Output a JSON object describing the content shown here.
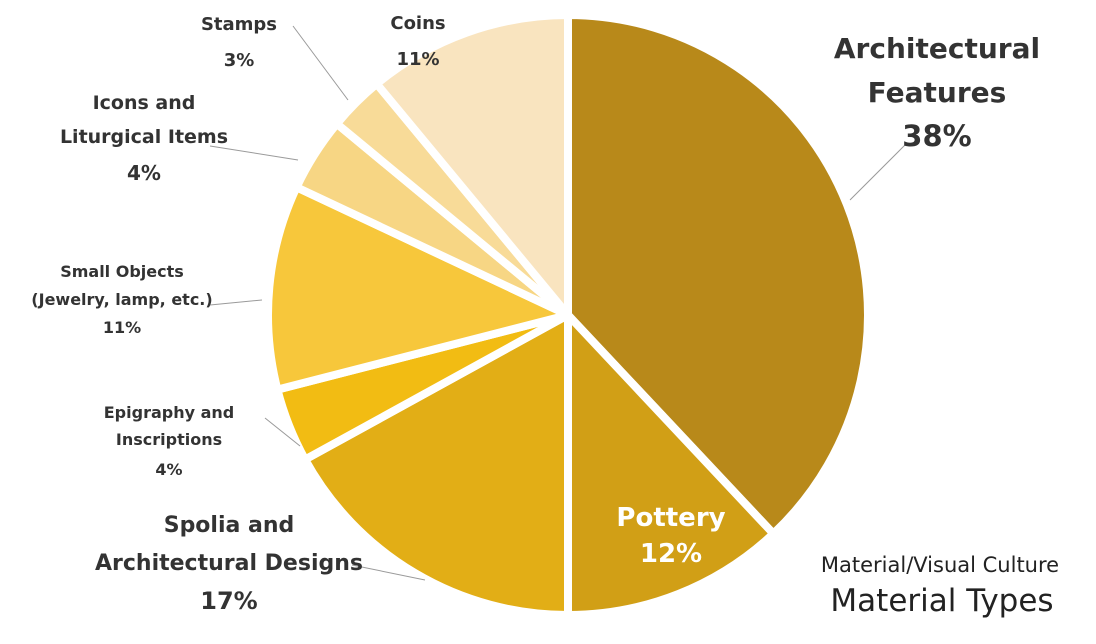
{
  "chart_data": {
    "type": "pie",
    "caption_line1": "Material/Visual Culture",
    "caption_line2": "Material Types",
    "slices": [
      {
        "label_lines": [
          "Architectural",
          "Features"
        ],
        "pct_text": "38%",
        "value": 38,
        "color": "#B8891A"
      },
      {
        "label_lines": [
          "Pottery"
        ],
        "pct_text": "12%",
        "value": 12,
        "color": "#D19F16"
      },
      {
        "label_lines": [
          "Spolia and",
          "Architectural Designs"
        ],
        "pct_text": "17%",
        "value": 17,
        "color": "#E2AE16"
      },
      {
        "label_lines": [
          "Epigraphy and",
          "Inscriptions"
        ],
        "pct_text": "4%",
        "value": 4,
        "color": "#F2BC13"
      },
      {
        "label_lines": [
          "Small Objects",
          "(Jewelry, lamp, etc.)"
        ],
        "pct_text": "11%",
        "value": 11,
        "color": "#F7C73B"
      },
      {
        "label_lines": [
          "Icons and",
          "Liturgical Items"
        ],
        "pct_text": "4%",
        "value": 4,
        "color": "#F7D684"
      },
      {
        "label_lines": [
          "Stamps"
        ],
        "pct_text": "3%",
        "value": 3,
        "color": "#F8DB98"
      },
      {
        "label_lines": [
          "Coins"
        ],
        "pct_text": "11%",
        "value": 11,
        "color": "#F9E4BF"
      }
    ]
  }
}
